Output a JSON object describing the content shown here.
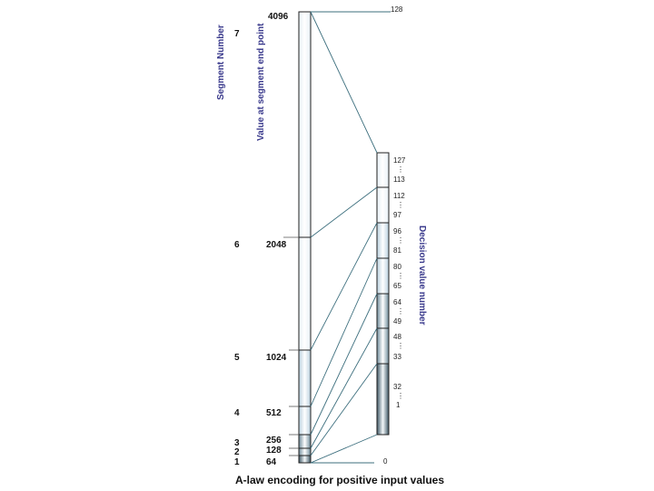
{
  "axis_titles": {
    "segment_number": "Segment Number",
    "value_at_end_point": "Value at segment end point",
    "decision_value_number": "Decision value number"
  },
  "caption": "A-law encoding for positive input values",
  "segments": [
    {
      "number": "7",
      "end_value": "4096"
    },
    {
      "number": "6",
      "end_value": "2048"
    },
    {
      "number": "5",
      "end_value": "1024"
    },
    {
      "number": "4",
      "end_value": "512"
    },
    {
      "number": "3",
      "end_value": "256"
    },
    {
      "number": "2",
      "end_value": "128"
    },
    {
      "number": "1",
      "end_value": "64"
    }
  ],
  "decision_boxes": [
    {
      "top": "127",
      "bottom": "113"
    },
    {
      "top": "112",
      "bottom": "97"
    },
    {
      "top": "96",
      "bottom": "81"
    },
    {
      "top": "80",
      "bottom": "65"
    },
    {
      "top": "64",
      "bottom": "49"
    },
    {
      "top": "48",
      "bottom": "33"
    },
    {
      "top": "32",
      "bottom": "1"
    }
  ],
  "decision_ends": {
    "top": "128",
    "bottom": "0"
  },
  "ellipsis": "⋮"
}
